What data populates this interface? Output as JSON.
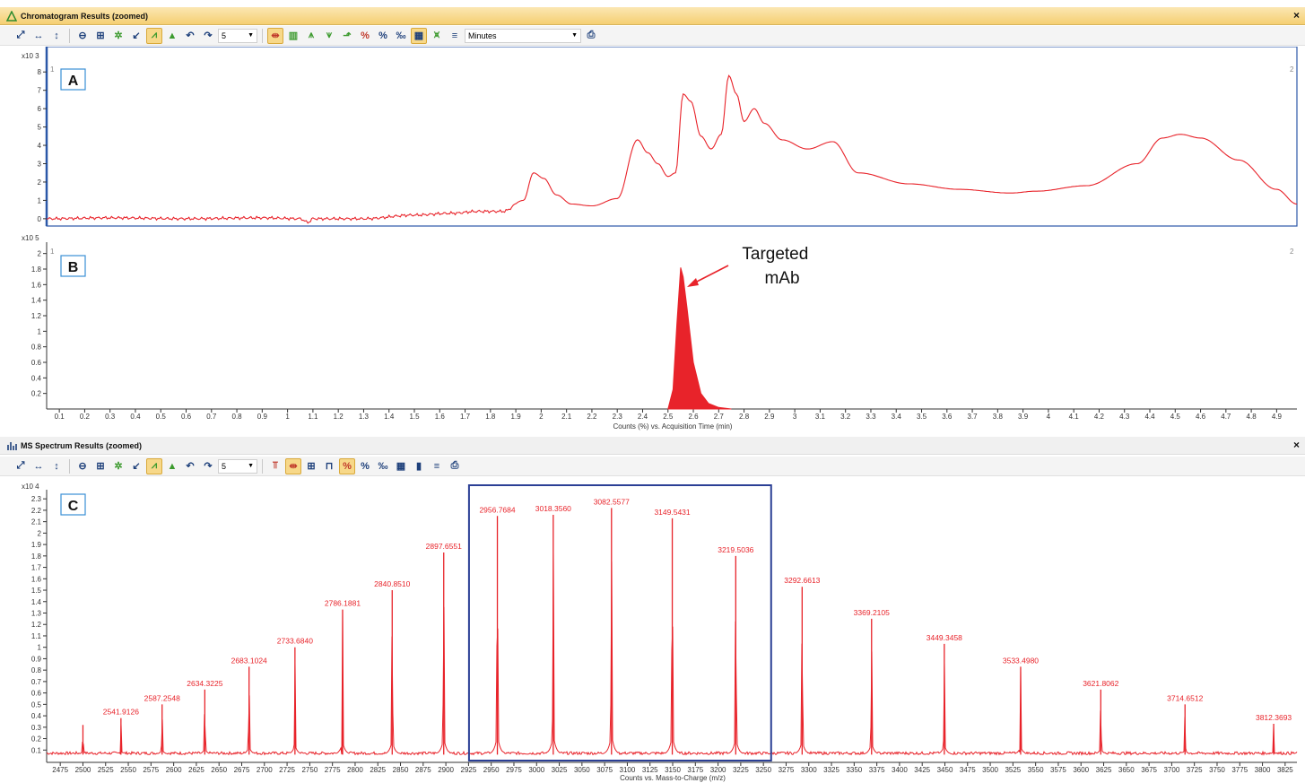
{
  "window1": {
    "title": "Chromatogram Results (zoomed)",
    "close": "×",
    "toolbar": {
      "count_value": "5",
      "units_value": "Minutes"
    }
  },
  "window2": {
    "title": "MS Spectrum Results (zoomed)",
    "close": "×",
    "toolbar": {
      "count_value": "5"
    }
  },
  "colors": {
    "trace": "#e8232a",
    "box": "#2b3f95",
    "axis": "#333333",
    "titlebar": "#f5cf72"
  },
  "chart_data": [
    {
      "panel": "A",
      "type": "line",
      "y_multiplier": "x10 3",
      "corner_left": "1",
      "corner_right": "2",
      "xlim": [
        0.05,
        4.98
      ],
      "ylim": [
        -0.3,
        8.5
      ],
      "yticks": [
        0,
        1,
        2,
        3,
        4,
        5,
        6,
        7,
        8
      ],
      "x": [
        0.05,
        0.3,
        0.6,
        0.9,
        1.05,
        1.08,
        1.1,
        1.3,
        1.5,
        1.65,
        1.75,
        1.85,
        1.93,
        1.97,
        2.01,
        2.06,
        2.12,
        2.2,
        2.3,
        2.38,
        2.42,
        2.46,
        2.5,
        2.53,
        2.56,
        2.59,
        2.63,
        2.67,
        2.71,
        2.74,
        2.77,
        2.8,
        2.84,
        2.88,
        2.95,
        3.05,
        3.15,
        3.25,
        3.45,
        3.65,
        3.85,
        3.95,
        4.15,
        4.35,
        4.45,
        4.52,
        4.6,
        4.75,
        4.9,
        4.98
      ],
      "values": [
        0.0,
        0.05,
        0.0,
        0.05,
        0.0,
        -0.2,
        0.0,
        0.0,
        0.2,
        0.3,
        0.4,
        0.4,
        1.0,
        2.5,
        2.2,
        1.3,
        0.8,
        0.7,
        1.1,
        4.3,
        3.6,
        3.0,
        2.3,
        2.5,
        6.8,
        6.4,
        4.5,
        3.8,
        4.6,
        7.8,
        6.8,
        5.3,
        6.0,
        5.2,
        4.3,
        3.8,
        4.2,
        2.5,
        1.9,
        1.6,
        1.4,
        1.5,
        1.8,
        3.0,
        4.4,
        4.6,
        4.4,
        3.2,
        1.6,
        0.8
      ]
    },
    {
      "panel": "B",
      "type": "area",
      "y_multiplier": "x10 5",
      "corner_left": "1",
      "corner_right": "2",
      "annotation": "Targeted mAb",
      "xlabel": "Counts (%) vs. Acquisition Time (min)",
      "xlim": [
        0.05,
        4.98
      ],
      "ylim": [
        0,
        2.1
      ],
      "xticks": [
        0.1,
        0.2,
        0.3,
        0.4,
        0.5,
        0.6,
        0.7,
        0.8,
        0.9,
        1,
        1.1,
        1.2,
        1.3,
        1.4,
        1.5,
        1.6,
        1.7,
        1.8,
        1.9,
        2,
        2.1,
        2.2,
        2.3,
        2.4,
        2.5,
        2.6,
        2.7,
        2.8,
        2.9,
        3,
        3.1,
        3.2,
        3.3,
        3.4,
        3.5,
        3.6,
        3.7,
        3.8,
        3.9,
        4,
        4.1,
        4.2,
        4.3,
        4.4,
        4.5,
        4.6,
        4.7,
        4.8,
        4.9
      ],
      "yticks": [
        0.2,
        0.4,
        0.6,
        0.8,
        1,
        1.2,
        1.4,
        1.6,
        1.8,
        2
      ],
      "x": [
        2.5,
        2.52,
        2.535,
        2.55,
        2.56,
        2.575,
        2.6,
        2.63,
        2.66,
        2.7,
        2.75
      ],
      "values": [
        0,
        0.25,
        1.1,
        1.82,
        1.7,
        1.3,
        0.6,
        0.2,
        0.07,
        0.02,
        0
      ]
    },
    {
      "panel": "C",
      "type": "bar",
      "y_multiplier": "x10 4",
      "xlabel": "Counts vs. Mass-to-Charge (m/z)",
      "xlim": [
        2460,
        3838
      ],
      "ylim": [
        0,
        2.38
      ],
      "xticks": [
        2475,
        2500,
        2525,
        2550,
        2575,
        2600,
        2625,
        2650,
        2675,
        2700,
        2725,
        2750,
        2775,
        2800,
        2825,
        2850,
        2875,
        2900,
        2925,
        2950,
        2975,
        3000,
        3025,
        3050,
        3075,
        3100,
        3125,
        3150,
        3175,
        3200,
        3225,
        3250,
        3275,
        3300,
        3325,
        3350,
        3375,
        3400,
        3425,
        3450,
        3475,
        3500,
        3525,
        3550,
        3575,
        3600,
        3625,
        3650,
        3675,
        3700,
        3725,
        3750,
        3775,
        3800,
        3825
      ],
      "yticks": [
        0.1,
        0.2,
        0.3,
        0.4,
        0.5,
        0.6,
        0.7,
        0.8,
        0.9,
        1,
        1.1,
        1.2,
        1.3,
        1.4,
        1.5,
        1.6,
        1.7,
        1.8,
        1.9,
        2,
        2.1,
        2.2,
        2.3
      ],
      "highlight_range": [
        2925.5,
        3258.5
      ],
      "peaks": [
        {
          "x": 2500,
          "y": 0.32,
          "label": ""
        },
        {
          "x": 2541.9126,
          "y": 0.38,
          "label": "2541.9126"
        },
        {
          "x": 2587.2548,
          "y": 0.5,
          "label": "2587.2548"
        },
        {
          "x": 2634.3225,
          "y": 0.63,
          "label": "2634.3225"
        },
        {
          "x": 2683.1024,
          "y": 0.83,
          "label": "2683.1024"
        },
        {
          "x": 2733.684,
          "y": 1.0,
          "label": "2733.6840"
        },
        {
          "x": 2786.1881,
          "y": 1.33,
          "label": "2786.1881"
        },
        {
          "x": 2840.851,
          "y": 1.5,
          "label": "2840.8510"
        },
        {
          "x": 2897.6551,
          "y": 1.83,
          "label": "2897.6551"
        },
        {
          "x": 2956.7684,
          "y": 2.15,
          "label": "2956.7684"
        },
        {
          "x": 3018.356,
          "y": 2.16,
          "label": "3018.3560"
        },
        {
          "x": 3082.5577,
          "y": 2.22,
          "label": "3082.5577"
        },
        {
          "x": 3149.5431,
          "y": 2.13,
          "label": "3149.5431"
        },
        {
          "x": 3219.5036,
          "y": 1.8,
          "label": "3219.5036"
        },
        {
          "x": 3292.6613,
          "y": 1.53,
          "label": "3292.6613"
        },
        {
          "x": 3369.2105,
          "y": 1.25,
          "label": "3369.2105"
        },
        {
          "x": 3449.3458,
          "y": 1.03,
          "label": "3449.3458"
        },
        {
          "x": 3533.498,
          "y": 0.83,
          "label": "3533.4980"
        },
        {
          "x": 3621.8062,
          "y": 0.63,
          "label": "3621.8062"
        },
        {
          "x": 3714.6512,
          "y": 0.5,
          "label": "3714.6512"
        },
        {
          "x": 3812.3693,
          "y": 0.33,
          "label": "3812.3693"
        }
      ]
    }
  ]
}
